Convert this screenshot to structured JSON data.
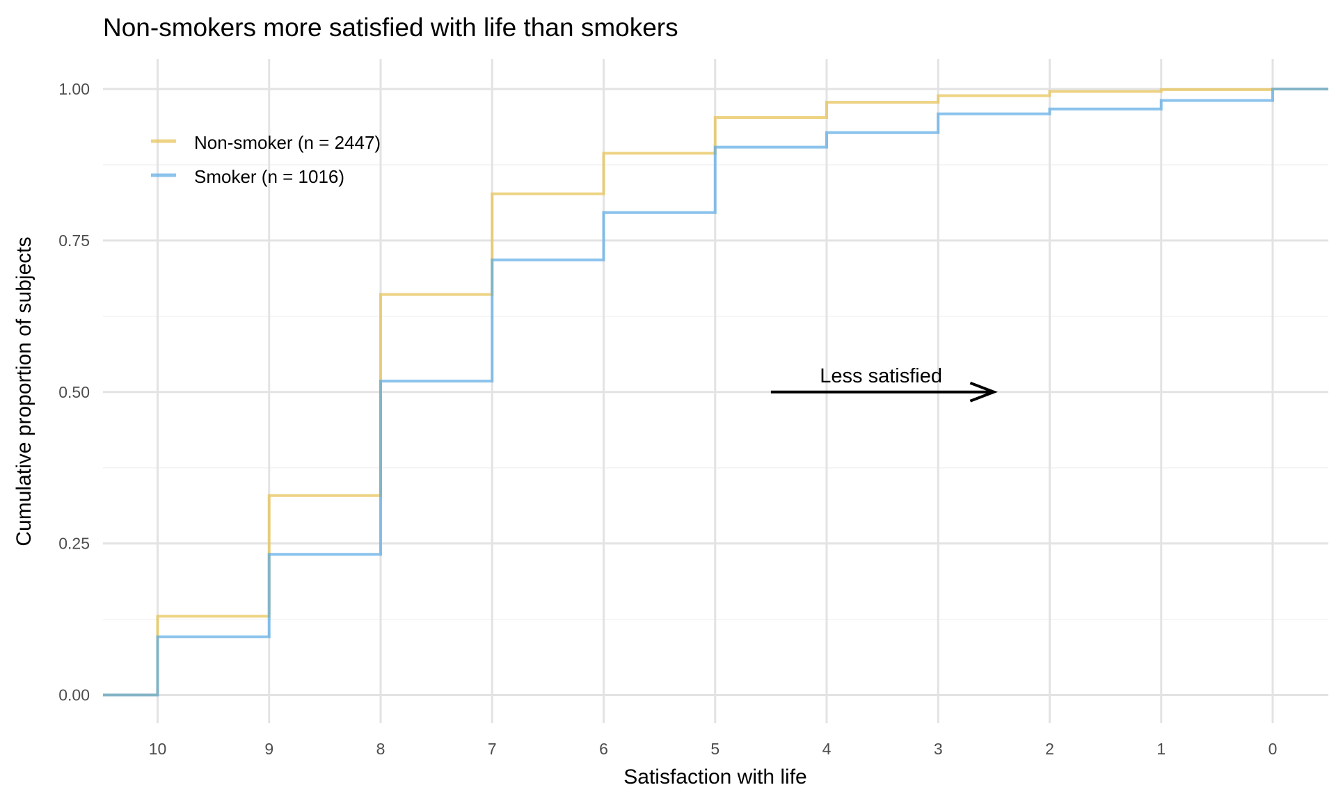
{
  "chart_data": {
    "type": "line",
    "step": true,
    "title": "Non-smokers more satisfied with life than smokers",
    "xlabel": "Satisfaction with life",
    "ylabel": "Cumulative proportion of subjects",
    "x_reversed": true,
    "xlim": [
      10.5,
      -0.5
    ],
    "ylim": [
      0,
      1
    ],
    "x_ticks": [
      "10",
      "9",
      "8",
      "7",
      "6",
      "5",
      "4",
      "3",
      "2",
      "1",
      "0"
    ],
    "y_ticks": [
      "0.00",
      "0.25",
      "0.50",
      "0.75",
      "1.00"
    ],
    "grid": true,
    "legend_position": "top-left",
    "x": [
      10,
      9,
      8,
      7,
      6,
      5,
      4,
      3,
      2,
      1,
      0
    ],
    "series": [
      {
        "name": "Non-smoker (n = 2447)",
        "color": "#E6C04E",
        "values": [
          0.13,
          0.329,
          0.661,
          0.827,
          0.894,
          0.953,
          0.978,
          0.989,
          0.996,
          0.999,
          1.0
        ]
      },
      {
        "name": "Smoker (n = 1016)",
        "color": "#5AAAE6",
        "values": [
          0.096,
          0.232,
          0.518,
          0.718,
          0.796,
          0.904,
          0.928,
          0.959,
          0.967,
          0.981,
          1.0
        ]
      }
    ],
    "annotation": {
      "text": "Less satisfied",
      "from_x": 4.5,
      "to_x": 2.5,
      "y": 0.5
    }
  }
}
